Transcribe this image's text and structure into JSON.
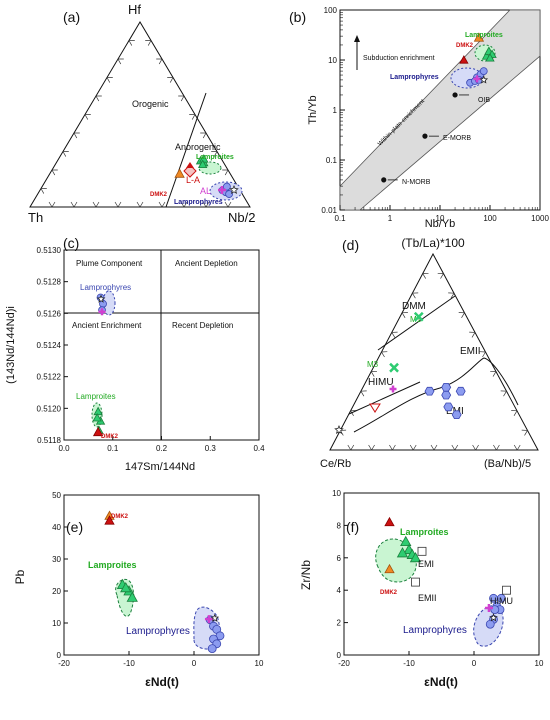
{
  "colors": {
    "lamproite_fill": "#2ecc71",
    "lamproite_stroke": "#1a7f3c",
    "lamproite_field": "#c9f5d2",
    "lamprophyre_fill": "#8c9cf0",
    "lamprophyre_stroke": "#3a46b0",
    "lamprophyre_field": "#d6dbf7",
    "dmk2": "#f08a24",
    "red": "#cc1111",
    "magenta": "#d040d0",
    "lamproite_label": "#22aa22",
    "lamprophyre_label": "#1a1a8c"
  },
  "panels": {
    "a": {
      "label": "(a)",
      "apex_top": "Hf",
      "apex_left": "Th",
      "apex_right": "Nb/2",
      "field1": "Orogenic",
      "field2": "Anorogenic",
      "lamproites": "Lamproites",
      "lamprophyres": "Lamprophyres",
      "la": "L-A",
      "al": "AL",
      "dmk2": "DMK2"
    },
    "b": {
      "label": "(b)",
      "ylabel": "Th/Yb",
      "xlabel": "Nb/Yb",
      "x_ticks": [
        "0.1",
        "1",
        "10",
        "100",
        "1000"
      ],
      "y_ticks": [
        "0.01",
        "0.1",
        "1",
        "10",
        "100"
      ],
      "subduction": "Subduction enrichment",
      "within_plate": "Within-plate enrichment",
      "lamproites": "Lamproites",
      "lamprophyres": "Lamprophyres",
      "dmk2": "DMK2",
      "oib": "OIB",
      "emorb": "E-MORB",
      "nmorb": "N-MORB"
    },
    "c": {
      "label": "(c)",
      "ylabel": "(143Nd/144Nd)i",
      "xlabel": "147Sm/144Nd",
      "x_ticks": [
        "0.0",
        "0.1",
        "0.2",
        "0.3",
        "0.4"
      ],
      "y_ticks": [
        "0.5118",
        "0.5120",
        "0.5122",
        "0.5124",
        "0.5126",
        "0.5128",
        "0.5130"
      ],
      "q1": "Plume Component",
      "q2": "Ancient Depletion",
      "q3": "Ancient Enrichment",
      "q4": "Recent Depletion",
      "lamprophyres": "Lamprophyres",
      "lamproites": "Lamproites",
      "dmk2": "DMK2"
    },
    "d": {
      "label": "(d)",
      "apex_top": "(Tb/La)*100",
      "apex_left": "Ce/Rb",
      "apex_right": "(Ba/Nb)/5",
      "dmm": "DMM",
      "emii": "EMII",
      "himu": "HIMU",
      "emi": "EMI",
      "m1": "M1",
      "m3": "M3"
    },
    "e": {
      "label": "(e)",
      "ylabel": "Pb",
      "xlabel": "εNd(t)",
      "x_ticks": [
        "-20",
        "-10",
        "0",
        "10"
      ],
      "y_ticks": [
        "0",
        "10",
        "20",
        "30",
        "40",
        "50"
      ],
      "dmk2": "DMK2",
      "lamproites": "Lamproites",
      "lamprophyres": "Lamprophyres"
    },
    "f": {
      "label": "(f)",
      "ylabel": "Zr/Nb",
      "xlabel": "εNd(t)",
      "x_ticks": [
        "-20",
        "-10",
        "0",
        "10"
      ],
      "y_ticks": [
        "0",
        "2",
        "4",
        "6",
        "8",
        "10"
      ],
      "lamproites": "Lamproites",
      "dmk2": "DMK2",
      "emi": "EMI",
      "emii": "EMII",
      "himu": "HIMU",
      "lamprophyres": "Lamprophyres"
    }
  },
  "chart_data": [
    {
      "panel": "a",
      "type": "scatter",
      "title": "",
      "apexes": [
        "Hf",
        "Th",
        "Nb/2"
      ],
      "series": [
        {
          "name": "Lamproites",
          "marker": "triangle",
          "points": [
            [
              0.25,
              0.1,
              0.65
            ],
            [
              0.24,
              0.09,
              0.67
            ],
            [
              0.26,
              0.08,
              0.66
            ],
            [
              0.23,
              0.1,
              0.67
            ]
          ]
        },
        {
          "name": "Lamprophyres",
          "marker": "circle",
          "points": [
            [
              0.09,
              0.08,
              0.83
            ],
            [
              0.1,
              0.06,
              0.84
            ],
            [
              0.08,
              0.07,
              0.85
            ],
            [
              0.11,
              0.05,
              0.84
            ],
            [
              0.07,
              0.06,
              0.87
            ]
          ]
        },
        {
          "name": "DMK2",
          "marker": "triangle",
          "points": [
            [
              0.18,
              0.23,
              0.59
            ]
          ]
        }
      ]
    },
    {
      "panel": "b",
      "type": "scatter",
      "title": "",
      "xlabel": "Nb/Yb",
      "ylabel": "Th/Yb",
      "xscale": "log",
      "yscale": "log",
      "xlim": [
        0.1,
        1000
      ],
      "ylim": [
        0.01,
        100
      ],
      "series": [
        {
          "name": "Lamproites",
          "x": [
            85,
            95,
            110,
            100
          ],
          "y": [
            12,
            15,
            13,
            11
          ]
        },
        {
          "name": "Lamprophyres",
          "x": [
            40,
            55,
            65,
            75,
            50,
            60
          ],
          "y": [
            3.5,
            4.5,
            5.2,
            6.0,
            3.8,
            4.0
          ]
        },
        {
          "name": "DMK2",
          "x": [
            60
          ],
          "y": [
            28
          ]
        },
        {
          "name": "Reference",
          "labels": [
            "OIB",
            "E-MORB",
            "N-MORB"
          ],
          "x": [
            20,
            5,
            0.75
          ],
          "y": [
            2,
            0.3,
            0.04
          ]
        }
      ]
    },
    {
      "panel": "c",
      "type": "scatter",
      "title": "",
      "xlabel": "147Sm/144Nd",
      "ylabel": "(143Nd/144Nd)i",
      "xlim": [
        0,
        0.4
      ],
      "ylim": [
        0.5118,
        0.513
      ],
      "series": [
        {
          "name": "Lamprophyres",
          "x": [
            0.075,
            0.08,
            0.078
          ],
          "y": [
            0.5127,
            0.51266,
            0.51262
          ]
        },
        {
          "name": "Lamproites",
          "x": [
            0.07,
            0.075,
            0.072,
            0.068
          ],
          "y": [
            0.51198,
            0.51192,
            0.51186,
            0.51194
          ]
        },
        {
          "name": "DMK2",
          "x": [
            0.07
          ],
          "y": [
            0.51185
          ]
        }
      ]
    },
    {
      "panel": "d",
      "type": "scatter",
      "title": "",
      "apexes": [
        "(Tb/La)*100",
        "Ce/Rb",
        "(Ba/Nb)/5"
      ],
      "series": [
        {
          "name": "Lamprophyres",
          "marker": "hexagon",
          "points": [
            [
              0.3,
              0.37,
              0.33
            ],
            [
              0.28,
              0.3,
              0.42
            ],
            [
              0.32,
              0.28,
              0.4
            ],
            [
              0.22,
              0.32,
              0.46
            ],
            [
              0.18,
              0.3,
              0.52
            ],
            [
              0.3,
              0.22,
              0.48
            ]
          ]
        },
        {
          "name": "M1",
          "points": [
            [
              0.68,
              0.23,
              0.09
            ]
          ]
        },
        {
          "name": "M3",
          "points": [
            [
              0.42,
              0.48,
              0.1
            ]
          ]
        }
      ]
    },
    {
      "panel": "e",
      "type": "scatter",
      "title": "",
      "xlabel": "εNd(t)",
      "ylabel": "Pb",
      "xlim": [
        -20,
        10
      ],
      "ylim": [
        0,
        50
      ],
      "series": [
        {
          "name": "DMK2",
          "x": [
            -13
          ],
          "y": [
            43.5
          ]
        },
        {
          "name": "Red",
          "x": [
            -13
          ],
          "y": [
            42
          ]
        },
        {
          "name": "Lamproites",
          "x": [
            -11,
            -10,
            -9.5,
            -10.5
          ],
          "y": [
            22,
            20,
            18,
            21
          ]
        },
        {
          "name": "Lamprophyres",
          "x": [
            2.5,
            3,
            3.5,
            4,
            3,
            3.5,
            2.8
          ],
          "y": [
            11,
            9,
            8,
            6,
            5,
            3.5,
            2
          ]
        }
      ]
    },
    {
      "panel": "f",
      "type": "scatter",
      "title": "",
      "xlabel": "εNd(t)",
      "ylabel": "Zr/Nb",
      "xlim": [
        -20,
        10
      ],
      "ylim": [
        0,
        10
      ],
      "series": [
        {
          "name": "Red",
          "x": [
            -13
          ],
          "y": [
            8.2
          ]
        },
        {
          "name": "DMK2",
          "x": [
            -13
          ],
          "y": [
            5.3
          ]
        },
        {
          "name": "Lamproites",
          "x": [
            -10.5,
            -10,
            -9.5,
            -11,
            -9
          ],
          "y": [
            7,
            6.5,
            6.2,
            6.3,
            6.0
          ]
        },
        {
          "name": "Lamprophyres",
          "x": [
            3,
            3.5,
            4,
            4.2,
            3,
            2.5,
            3.2
          ],
          "y": [
            3.5,
            3.0,
            2.8,
            3.5,
            2.2,
            1.9,
            2.8
          ]
        },
        {
          "name": "Reference",
          "labels": [
            "EMI",
            "EMII",
            "HIMU"
          ],
          "x": [
            -8,
            -9,
            5
          ],
          "y": [
            6.4,
            4.5,
            4.0
          ]
        }
      ]
    }
  ]
}
